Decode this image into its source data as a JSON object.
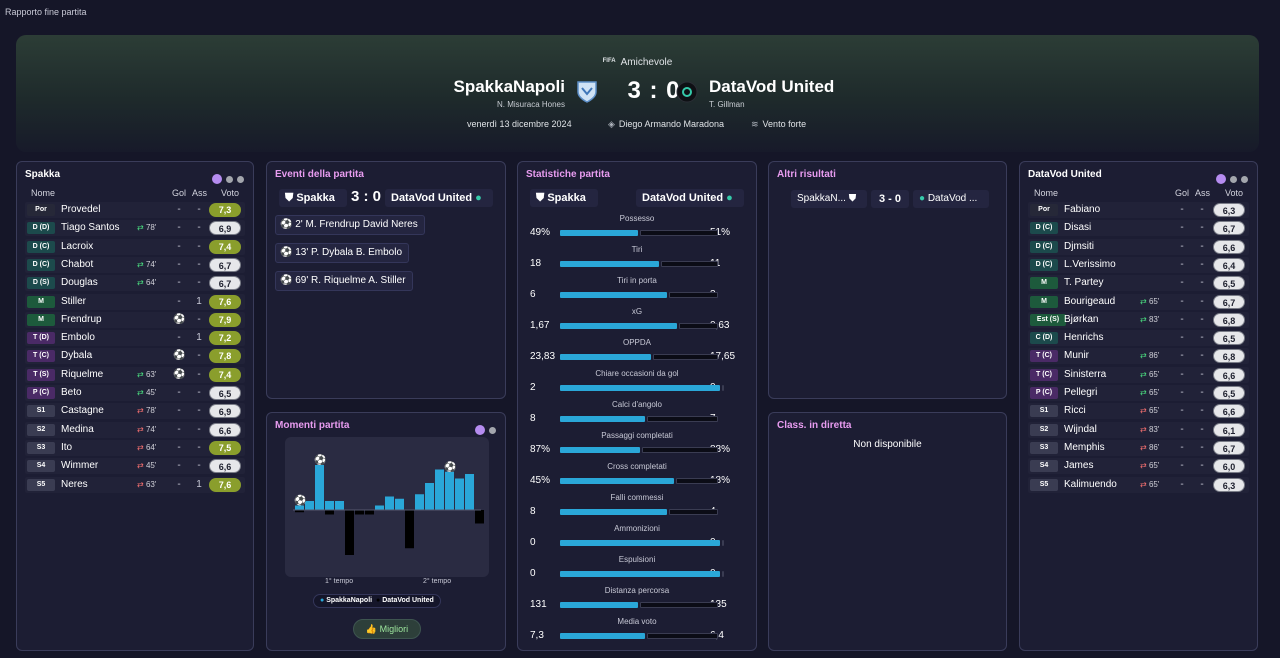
{
  "window": {
    "title": "Rapporto fine partita"
  },
  "match": {
    "competition": "Amichevole",
    "home": {
      "name": "SpakkaNapoli",
      "coach": "N. Misuraca Hones",
      "short": "Spakka"
    },
    "away": {
      "name": "DataVod United",
      "coach": "T. Gillman"
    },
    "score": "3 : 0",
    "date": "venerdì 13 dicembre 2024",
    "stadium": "Diego Armando Maradona",
    "weather": "Vento forte"
  },
  "lineup_headers": {
    "name": "Nome",
    "gol": "Gol",
    "ass": "Ass",
    "voto": "Voto"
  },
  "home_panel": {
    "title": "Spakka"
  },
  "away_panel": {
    "title": "DataVod United"
  },
  "home_players": [
    {
      "pos": "Por",
      "name": "Provedel",
      "sub": "",
      "gol": "-",
      "ass": "-",
      "voto": "7,3"
    },
    {
      "pos": "D (D)",
      "name": "Tiago Santos",
      "sub": "78'",
      "gol": "-",
      "ass": "-",
      "voto": "6,9"
    },
    {
      "pos": "D (C)",
      "name": "Lacroix",
      "sub": "",
      "gol": "-",
      "ass": "-",
      "voto": "7,4"
    },
    {
      "pos": "D (C)",
      "name": "Chabot",
      "sub": "74'",
      "gol": "-",
      "ass": "-",
      "voto": "6,7"
    },
    {
      "pos": "D (S)",
      "name": "Douglas",
      "sub": "64'",
      "gol": "-",
      "ass": "-",
      "voto": "6,7"
    },
    {
      "pos": "M",
      "name": "Stiller",
      "sub": "",
      "gol": "-",
      "ass": "1",
      "voto": "7,6"
    },
    {
      "pos": "M",
      "name": "Frendrup",
      "sub": "",
      "gol": "⚽",
      "ass": "-",
      "voto": "7,9"
    },
    {
      "pos": "T (D)",
      "name": "Embolo",
      "sub": "",
      "gol": "-",
      "ass": "1",
      "voto": "7,2"
    },
    {
      "pos": "T (C)",
      "name": "Dybala",
      "sub": "",
      "gol": "⚽",
      "ass": "-",
      "voto": "7,8"
    },
    {
      "pos": "T (S)",
      "name": "Riquelme",
      "sub": "63'",
      "gol": "⚽",
      "ass": "-",
      "voto": "7,4"
    },
    {
      "pos": "P (C)",
      "name": "Beto",
      "sub": "45'",
      "gol": "-",
      "ass": "-",
      "voto": "6,5"
    },
    {
      "pos": "S1",
      "name": "Castagne",
      "sub": "78'",
      "gol": "-",
      "ass": "-",
      "voto": "6,9"
    },
    {
      "pos": "S2",
      "name": "Medina",
      "sub": "74'",
      "gol": "-",
      "ass": "-",
      "voto": "6,6"
    },
    {
      "pos": "S3",
      "name": "Ito",
      "sub": "64'",
      "gol": "-",
      "ass": "-",
      "voto": "7,5"
    },
    {
      "pos": "S4",
      "name": "Wimmer",
      "sub": "45'",
      "gol": "-",
      "ass": "-",
      "voto": "6,6"
    },
    {
      "pos": "S5",
      "name": "Neres",
      "sub": "63'",
      "gol": "-",
      "ass": "1",
      "voto": "7,6"
    }
  ],
  "away_players": [
    {
      "pos": "Por",
      "name": "Fabiano",
      "sub": "",
      "gol": "-",
      "ass": "-",
      "voto": "6,3"
    },
    {
      "pos": "D (C)",
      "name": "Disasi",
      "sub": "",
      "gol": "-",
      "ass": "-",
      "voto": "6,7"
    },
    {
      "pos": "D (C)",
      "name": "Djmsiti",
      "sub": "",
      "gol": "-",
      "ass": "-",
      "voto": "6,6"
    },
    {
      "pos": "D (C)",
      "name": "L.Verissimo",
      "sub": "",
      "gol": "-",
      "ass": "-",
      "voto": "6,4"
    },
    {
      "pos": "M",
      "name": "T. Partey",
      "sub": "",
      "gol": "-",
      "ass": "-",
      "voto": "6,5"
    },
    {
      "pos": "M",
      "name": "Bourigeaud",
      "sub": "65'",
      "gol": "-",
      "ass": "-",
      "voto": "6,7"
    },
    {
      "pos": "Est (S)",
      "name": "Bjørkan",
      "sub": "83'",
      "gol": "-",
      "ass": "-",
      "voto": "6,8"
    },
    {
      "pos": "C (D)",
      "name": "Henrichs",
      "sub": "",
      "gol": "-",
      "ass": "-",
      "voto": "6,5"
    },
    {
      "pos": "T (C)",
      "name": "Munir",
      "sub": "86'",
      "gol": "-",
      "ass": "-",
      "voto": "6,8"
    },
    {
      "pos": "T (C)",
      "name": "Sinisterra",
      "sub": "65'",
      "gol": "-",
      "ass": "-",
      "voto": "6,6"
    },
    {
      "pos": "P (C)",
      "name": "Pellegri",
      "sub": "65'",
      "gol": "-",
      "ass": "-",
      "voto": "6,5"
    },
    {
      "pos": "S1",
      "name": "Ricci",
      "sub": "65'",
      "gol": "-",
      "ass": "-",
      "voto": "6,6"
    },
    {
      "pos": "S2",
      "name": "Wijndal",
      "sub": "83'",
      "gol": "-",
      "ass": "-",
      "voto": "6,1"
    },
    {
      "pos": "S3",
      "name": "Memphis",
      "sub": "86'",
      "gol": "-",
      "ass": "-",
      "voto": "6,7"
    },
    {
      "pos": "S4",
      "name": "James",
      "sub": "65'",
      "gol": "-",
      "ass": "-",
      "voto": "6,0"
    },
    {
      "pos": "S5",
      "name": "Kalimuendo",
      "sub": "65'",
      "gol": "-",
      "ass": "-",
      "voto": "6,3"
    }
  ],
  "events_panel": {
    "title": "Eventi della partita",
    "home": "Spakka",
    "score": "3 : 0",
    "away": "DataVod United",
    "events": [
      {
        "text": "2' M. Frendrup David Neres"
      },
      {
        "text": "13' P. Dybala B. Embolo"
      },
      {
        "text": "69' R. Riquelme A. Stiller"
      }
    ]
  },
  "moments_panel": {
    "title": "Momenti partita",
    "half1": "1° tempo",
    "half2": "2° tempo",
    "legend_home": "SpakkaNapoli",
    "legend_away": "DataVod United",
    "button": "Migliori",
    "color_home": "#2aa7d8",
    "color_away": "#000000"
  },
  "chart_data": {
    "type": "bar",
    "series": [
      {
        "name": "SpakkaNapoli",
        "values": [
          0.1,
          0.2,
          1,
          0.2,
          0.2,
          0,
          0,
          0,
          0.1,
          0.3,
          0.25,
          0,
          0.35,
          0.6,
          0.9,
          0.85,
          0.7,
          0.8,
          0
        ]
      },
      {
        "name": "DataVod United",
        "values": [
          -0.05,
          0,
          0,
          -0.1,
          0,
          -1,
          -0.1,
          -0.1,
          0,
          0,
          0,
          -0.85,
          0,
          0,
          0,
          0,
          0,
          0,
          -0.3
        ]
      }
    ]
  },
  "stats_panel": {
    "title": "Statistiche partita",
    "home": "Spakka",
    "away": "DataVod United",
    "rows": [
      {
        "label": "Possesso",
        "home": "49%",
        "away": "51%",
        "hf": 0.49,
        "af": 0.51
      },
      {
        "label": "Tiri",
        "home": "18",
        "away": "11",
        "hf": 0.62,
        "af": 0.38
      },
      {
        "label": "Tiri in porta",
        "home": "6",
        "away": "3",
        "hf": 0.67,
        "af": 0.33
      },
      {
        "label": "xG",
        "home": "1,67",
        "away": "0,63",
        "hf": 0.73,
        "af": 0.27
      },
      {
        "label": "OPPDA",
        "home": "23,83",
        "away": "17,65",
        "hf": 0.57,
        "af": 0.43
      },
      {
        "label": "Chiare occasioni da gol",
        "home": "2",
        "away": "0",
        "hf": 1.0,
        "af": 0.0
      },
      {
        "label": "Calci d'angolo",
        "home": "8",
        "away": "7",
        "hf": 0.53,
        "af": 0.47
      },
      {
        "label": "Passaggi completati",
        "home": "87%",
        "away": "88%",
        "hf": 0.5,
        "af": 0.5
      },
      {
        "label": "Cross completati",
        "home": "45%",
        "away": "18%",
        "hf": 0.71,
        "af": 0.29
      },
      {
        "label": "Falli commessi",
        "home": "8",
        "away": "4",
        "hf": 0.67,
        "af": 0.33
      },
      {
        "label": "Ammonizioni",
        "home": "0",
        "away": "0",
        "hf": 1.0,
        "af": 0.0
      },
      {
        "label": "Espulsioni",
        "home": "0",
        "away": "0",
        "hf": 1.0,
        "af": 0.0
      },
      {
        "label": "Distanza percorsa",
        "home": "131",
        "away": "135",
        "hf": 0.49,
        "af": 0.51
      },
      {
        "label": "Media voto",
        "home": "7,3",
        "away": "6,4",
        "hf": 0.53,
        "af": 0.47
      }
    ]
  },
  "other_results": {
    "title": "Altri risultati",
    "home": "SpakkaN...",
    "score": "3 - 0",
    "away": "DataVod ..."
  },
  "live_table": {
    "title": "Class. in diretta",
    "message": "Non disponibile"
  }
}
